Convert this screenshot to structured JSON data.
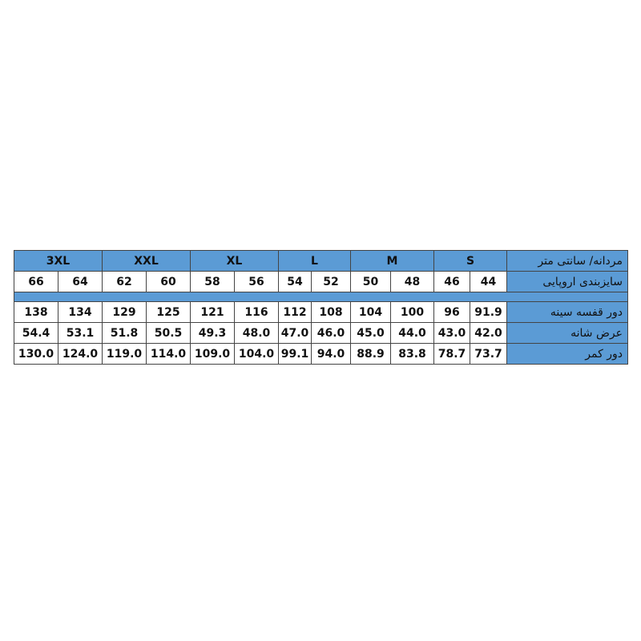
{
  "colors": {
    "header_bg": "#5b9bd5",
    "cell_bg": "#ffffff",
    "border": "#444444"
  },
  "labels": {
    "title": "مردانه/ سانتی متر",
    "eu_size": "سایزبندی اروپایی",
    "chest": "دور قفسه سینه",
    "shoulder": "عرض شانه",
    "waist": "دور کمر"
  },
  "size_groups": [
    "S",
    "M",
    "L",
    "XL",
    "XXL",
    "3XL"
  ],
  "eu_sizes": [
    "44",
    "46",
    "48",
    "50",
    "52",
    "54",
    "56",
    "58",
    "60",
    "62",
    "64",
    "66"
  ],
  "chest": [
    "91.9",
    "96",
    "100",
    "104",
    "108",
    "112",
    "116",
    "121",
    "125",
    "129",
    "134",
    "138"
  ],
  "shoulder": [
    "42.0",
    "43.0",
    "44.0",
    "45.0",
    "46.0",
    "47.0",
    "48.0",
    "49.3",
    "50.5",
    "51.8",
    "53.1",
    "54.4"
  ],
  "waist": [
    "73.7",
    "78.7",
    "83.8",
    "88.9",
    "94.0",
    "99.1",
    "104.0",
    "109.0",
    "114.0",
    "119.0",
    "124.0",
    "130.0"
  ]
}
